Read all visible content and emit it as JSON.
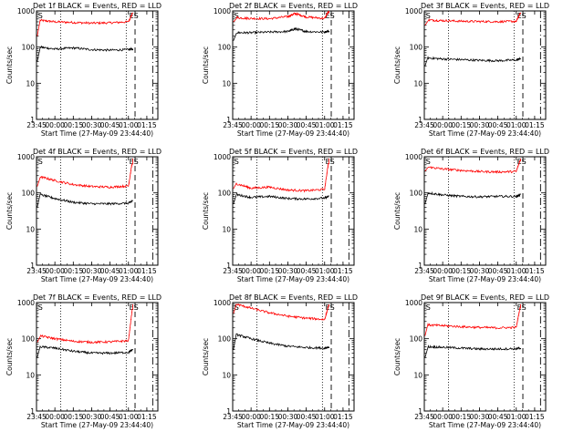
{
  "figure": {
    "background": "#ffffff"
  },
  "common": {
    "x_tick_labels": [
      "23:45",
      "00:00",
      "00:15",
      "00:30",
      "00:45",
      "01:00",
      "01:15"
    ],
    "x_tick_hours": [
      -0.25,
      0,
      0.25,
      0.5,
      0.75,
      1.0,
      1.25
    ],
    "xlim_hours": [
      -0.25,
      1.4
    ],
    "y_tick_labels": [
      "1",
      "10",
      "100",
      "1000"
    ],
    "ylim": [
      1,
      1000
    ],
    "yscale": "log",
    "ylabel": "Counts/sec",
    "xlabel": "Start Time (27-May-09 23:44:40)",
    "marker_left": "S",
    "marker_right": "ES",
    "marker_left_hour": -0.24,
    "marker_right_hour": 1.06,
    "vline_dotted_hours": [
      0.08,
      0.97
    ],
    "vline_dashed_hours": [
      1.09
    ],
    "vline_dashdot_hours": [
      1.33
    ],
    "events_color": "#000000",
    "lld_color": "#ff0000"
  },
  "chart_data": [
    {
      "type": "line",
      "title": "Det 1f BLACK = Events, RED = LLD",
      "yscale": "log",
      "series": [
        {
          "color": "#000000",
          "x": [
            -0.24,
            -0.2,
            0,
            0.25,
            0.5,
            0.75,
            1.0,
            1.06
          ],
          "y": [
            40,
            100,
            88,
            95,
            85,
            82,
            85,
            90
          ]
        },
        {
          "color": "#ff0000",
          "x": [
            -0.24,
            -0.2,
            0,
            0.25,
            0.5,
            0.75,
            1.0,
            1.06
          ],
          "y": [
            200,
            550,
            500,
            480,
            460,
            470,
            500,
            900
          ]
        }
      ]
    },
    {
      "type": "line",
      "title": "Det 2f BLACK = Events, RED = LLD",
      "yscale": "log",
      "series": [
        {
          "color": "#000000",
          "x": [
            -0.24,
            -0.2,
            0,
            0.25,
            0.5,
            0.6,
            0.75,
            1.0,
            1.06
          ],
          "y": [
            150,
            250,
            250,
            260,
            270,
            320,
            270,
            260,
            280
          ]
        },
        {
          "color": "#ff0000",
          "x": [
            -0.24,
            -0.2,
            0,
            0.25,
            0.5,
            0.6,
            0.75,
            1.0,
            1.06
          ],
          "y": [
            500,
            650,
            620,
            610,
            700,
            850,
            680,
            620,
            1000
          ]
        }
      ]
    },
    {
      "type": "line",
      "title": "Det 3f BLACK = Events, RED = LLD",
      "yscale": "log",
      "series": [
        {
          "color": "#000000",
          "x": [
            -0.24,
            -0.2,
            0,
            0.25,
            0.5,
            0.75,
            1.0,
            1.06
          ],
          "y": [
            30,
            50,
            47,
            45,
            43,
            42,
            44,
            48
          ]
        },
        {
          "color": "#ff0000",
          "x": [
            -0.24,
            -0.2,
            0,
            0.25,
            0.5,
            0.75,
            1.0,
            1.06
          ],
          "y": [
            400,
            560,
            540,
            520,
            510,
            505,
            515,
            900
          ]
        }
      ]
    },
    {
      "type": "line",
      "title": "Det 4f BLACK = Events, RED = LLD",
      "yscale": "log",
      "series": [
        {
          "color": "#000000",
          "x": [
            -0.24,
            -0.2,
            0,
            0.25,
            0.5,
            0.75,
            1.0,
            1.06
          ],
          "y": [
            40,
            90,
            70,
            55,
            50,
            50,
            52,
            60
          ]
        },
        {
          "color": "#ff0000",
          "x": [
            -0.24,
            -0.2,
            0,
            0.25,
            0.5,
            0.75,
            1.0,
            1.06
          ],
          "y": [
            150,
            280,
            220,
            170,
            150,
            145,
            155,
            900
          ]
        }
      ]
    },
    {
      "type": "line",
      "title": "Det 5f BLACK = Events, RED = LLD",
      "yscale": "log",
      "series": [
        {
          "color": "#000000",
          "x": [
            -0.24,
            -0.2,
            0,
            0.25,
            0.5,
            0.75,
            1.0,
            1.06
          ],
          "y": [
            50,
            90,
            75,
            80,
            70,
            68,
            72,
            80
          ]
        },
        {
          "color": "#ff0000",
          "x": [
            -0.24,
            -0.2,
            0,
            0.25,
            0.5,
            0.75,
            1.0,
            1.06
          ],
          "y": [
            130,
            180,
            135,
            145,
            120,
            115,
            125,
            900
          ]
        }
      ]
    },
    {
      "type": "line",
      "title": "Det 6f BLACK = Events, RED = LLD",
      "yscale": "log",
      "series": [
        {
          "color": "#000000",
          "x": [
            -0.24,
            -0.2,
            0,
            0.25,
            0.5,
            0.75,
            1.0,
            1.06
          ],
          "y": [
            50,
            100,
            88,
            80,
            78,
            80,
            80,
            90
          ]
        },
        {
          "color": "#ff0000",
          "x": [
            -0.24,
            -0.2,
            0,
            0.25,
            0.5,
            0.75,
            1.0,
            1.06
          ],
          "y": [
            400,
            520,
            460,
            420,
            390,
            380,
            390,
            900
          ]
        }
      ]
    },
    {
      "type": "line",
      "title": "Det 7f BLACK = Events, RED = LLD",
      "yscale": "log",
      "series": [
        {
          "color": "#000000",
          "x": [
            -0.24,
            -0.2,
            0,
            0.25,
            0.5,
            0.75,
            1.0,
            1.06
          ],
          "y": [
            30,
            60,
            55,
            45,
            40,
            40,
            42,
            50
          ]
        },
        {
          "color": "#ff0000",
          "x": [
            -0.24,
            -0.2,
            0,
            0.25,
            0.5,
            0.75,
            1.0,
            1.06
          ],
          "y": [
            80,
            120,
            100,
            85,
            80,
            82,
            88,
            900
          ]
        }
      ]
    },
    {
      "type": "line",
      "title": "Det 8f BLACK = Events, RED = LLD",
      "yscale": "log",
      "series": [
        {
          "color": "#000000",
          "x": [
            -0.24,
            -0.2,
            0,
            0.25,
            0.5,
            0.75,
            1.0,
            1.06
          ],
          "y": [
            50,
            130,
            100,
            75,
            62,
            57,
            55,
            60
          ]
        },
        {
          "color": "#ff0000",
          "x": [
            -0.24,
            -0.2,
            0,
            0.25,
            0.5,
            0.75,
            1.0,
            1.06
          ],
          "y": [
            500,
            900,
            700,
            520,
            420,
            370,
            340,
            900
          ]
        }
      ]
    },
    {
      "type": "line",
      "title": "Det 9f BLACK = Events, RED = LLD",
      "yscale": "log",
      "series": [
        {
          "color": "#000000",
          "x": [
            -0.24,
            -0.2,
            0,
            0.25,
            0.5,
            0.75,
            1.0,
            1.06
          ],
          "y": [
            30,
            60,
            58,
            55,
            52,
            52,
            53,
            55
          ]
        },
        {
          "color": "#ff0000",
          "x": [
            -0.24,
            -0.2,
            0,
            0.25,
            0.5,
            0.75,
            1.0,
            1.06
          ],
          "y": [
            120,
            240,
            230,
            215,
            205,
            200,
            205,
            900
          ]
        }
      ]
    }
  ]
}
